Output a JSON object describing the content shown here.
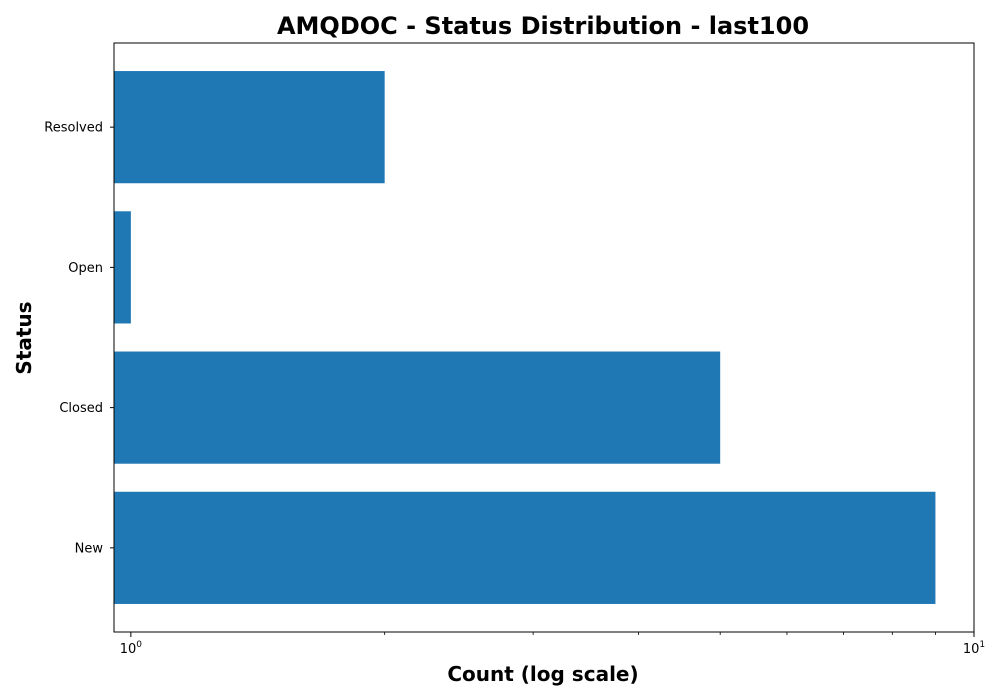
{
  "chart_data": {
    "type": "bar",
    "orientation": "horizontal",
    "title": "AMQDOC - Status Distribution - last100",
    "xlabel": "Count (log scale)",
    "ylabel": "Status",
    "x_scale": "log",
    "xlim": [
      0.955,
      10
    ],
    "categories": [
      "New",
      "Closed",
      "Open",
      "Resolved"
    ],
    "values": [
      9,
      5,
      1,
      2
    ],
    "major_ticks": [
      {
        "value": 1,
        "base": "10",
        "exp": "0"
      },
      {
        "value": 10,
        "base": "10",
        "exp": "1"
      }
    ],
    "minor_ticks": [
      2,
      3,
      4,
      5,
      6,
      7,
      8,
      9
    ],
    "bar_color": "#1f77b4",
    "grid": false,
    "legend": "none"
  }
}
